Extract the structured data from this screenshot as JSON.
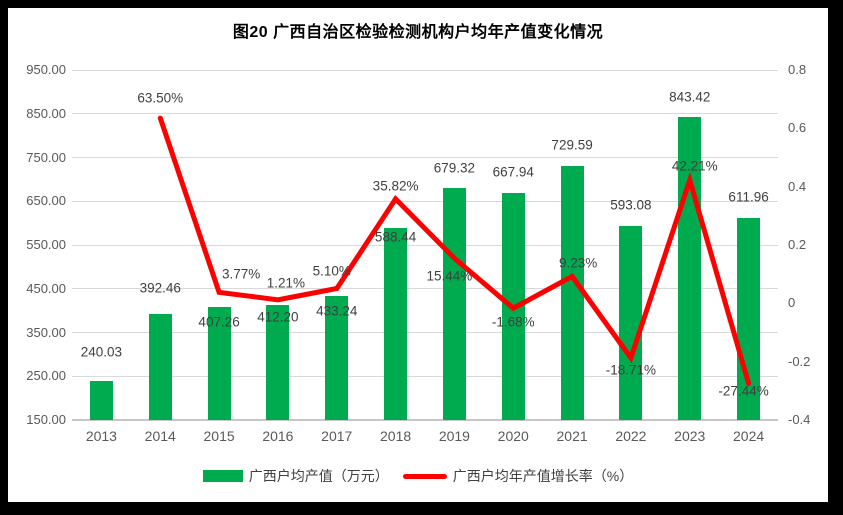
{
  "frame": {
    "border_color": "#000000",
    "canvas_color": "#ffffff"
  },
  "chart_data": {
    "type": "combo-bar-line",
    "title": "图20 广西自治区检验检测机构户均年产值变化情况",
    "categories": [
      "2013",
      "2014",
      "2015",
      "2016",
      "2017",
      "2018",
      "2019",
      "2020",
      "2021",
      "2022",
      "2023",
      "2024"
    ],
    "series": [
      {
        "name": "广西户均产值（万元）",
        "type": "bar",
        "color": "#00AB4F",
        "axis": "left",
        "values": [
          240.03,
          392.46,
          407.26,
          412.2,
          433.24,
          588.44,
          679.32,
          667.94,
          729.59,
          593.08,
          843.42,
          611.96
        ],
        "labels": [
          "240.03",
          "392.46",
          "407.26",
          "412.20",
          "433.24",
          "588.44",
          "679.32",
          "667.94",
          "729.59",
          "593.08",
          "843.42",
          "611.96"
        ]
      },
      {
        "name": "广西户均年产值增长率（%）",
        "type": "line",
        "color": "#FF0000",
        "axis": "right",
        "values": [
          null,
          63.5,
          3.77,
          1.21,
          5.1,
          35.82,
          15.44,
          -1.68,
          9.23,
          -18.71,
          42.21,
          -27.44
        ],
        "labels": [
          null,
          "63.50%",
          "3.77%",
          "1.21%",
          "5.10%",
          "35.82%",
          "15.44%",
          "-1.68%",
          "9.23%",
          "-18.71%",
          "42.21%",
          "-27.44%"
        ]
      }
    ],
    "left_axis": {
      "min": 150,
      "max": 950,
      "step": 100,
      "tick_labels": [
        "950.00",
        "850.00",
        "750.00",
        "650.00",
        "550.00",
        "450.00",
        "350.00",
        "250.00",
        "150.00"
      ]
    },
    "right_axis": {
      "min": -0.4,
      "max": 0.8,
      "step": 0.2,
      "tick_labels": [
        "0.8",
        "0.6",
        "0.4",
        "0.2",
        "0",
        "-0.2",
        "-0.4"
      ]
    },
    "grid": true,
    "legend_position": "bottom",
    "colors": {
      "grid": "#d9d9d9",
      "axis_text": "#595959",
      "data_label": "#3f3f3f",
      "title": "#000000"
    },
    "layout_hints": {
      "bar_label_dy": [
        -29,
        -26,
        15,
        12,
        15,
        9,
        -20,
        -21,
        -21,
        -21,
        -20,
        -21
      ],
      "line_label_dx": [
        0,
        0,
        22,
        8,
        -5,
        0,
        -5,
        0,
        6,
        0,
        5,
        -5
      ],
      "line_label_dy": [
        0,
        -20,
        -18,
        -17,
        -17,
        -13,
        18,
        14,
        -13,
        12,
        -14,
        8
      ]
    }
  }
}
